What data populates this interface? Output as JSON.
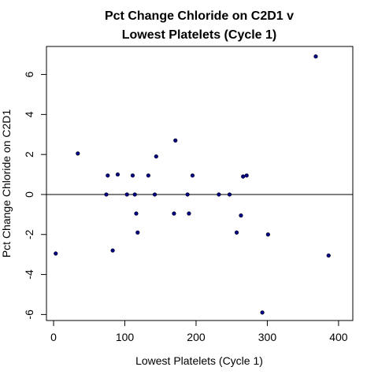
{
  "chart_data": {
    "type": "scatter",
    "title_lines": [
      "Pct Change Chloride on C2D1 v",
      "Lowest Platelets (Cycle 1)"
    ],
    "xlabel": "Lowest Platelets (Cycle 1)",
    "ylabel": "Pct Change Chloride on C2D1",
    "xlim": [
      -10,
      420
    ],
    "ylim": [
      -6.3,
      7.4
    ],
    "x_ticks": [
      0,
      100,
      200,
      300,
      400
    ],
    "x_tick_labels": [
      "0",
      "100",
      "200",
      "300",
      "400"
    ],
    "y_ticks": [
      -6,
      -4,
      -2,
      0,
      2,
      4,
      6
    ],
    "y_tick_labels": [
      "-6",
      "-4",
      "-2",
      "0",
      "2",
      "4",
      "6"
    ],
    "reference_line_y": 0,
    "point_color": "#00008b",
    "points": [
      {
        "x": 3,
        "y": -2.95
      },
      {
        "x": 34,
        "y": 2.05
      },
      {
        "x": 74,
        "y": 0.0
      },
      {
        "x": 76,
        "y": 0.95
      },
      {
        "x": 83,
        "y": -2.8
      },
      {
        "x": 90,
        "y": 1.0
      },
      {
        "x": 103,
        "y": 0.0
      },
      {
        "x": 111,
        "y": 0.95
      },
      {
        "x": 114,
        "y": 0.0
      },
      {
        "x": 116,
        "y": -0.95
      },
      {
        "x": 118,
        "y": -1.9
      },
      {
        "x": 133,
        "y": 0.95
      },
      {
        "x": 142,
        "y": 0.0
      },
      {
        "x": 144,
        "y": 1.9
      },
      {
        "x": 169,
        "y": -0.95
      },
      {
        "x": 171,
        "y": 2.7
      },
      {
        "x": 188,
        "y": 0.0
      },
      {
        "x": 190,
        "y": -0.95
      },
      {
        "x": 195,
        "y": 0.95
      },
      {
        "x": 232,
        "y": 0.0
      },
      {
        "x": 247,
        "y": 0.0
      },
      {
        "x": 257,
        "y": -1.9
      },
      {
        "x": 263,
        "y": -1.05
      },
      {
        "x": 266,
        "y": 0.9
      },
      {
        "x": 271,
        "y": 0.95
      },
      {
        "x": 293,
        "y": -5.9
      },
      {
        "x": 301,
        "y": -2.0
      },
      {
        "x": 368,
        "y": 6.9
      },
      {
        "x": 386,
        "y": -3.05
      }
    ]
  }
}
